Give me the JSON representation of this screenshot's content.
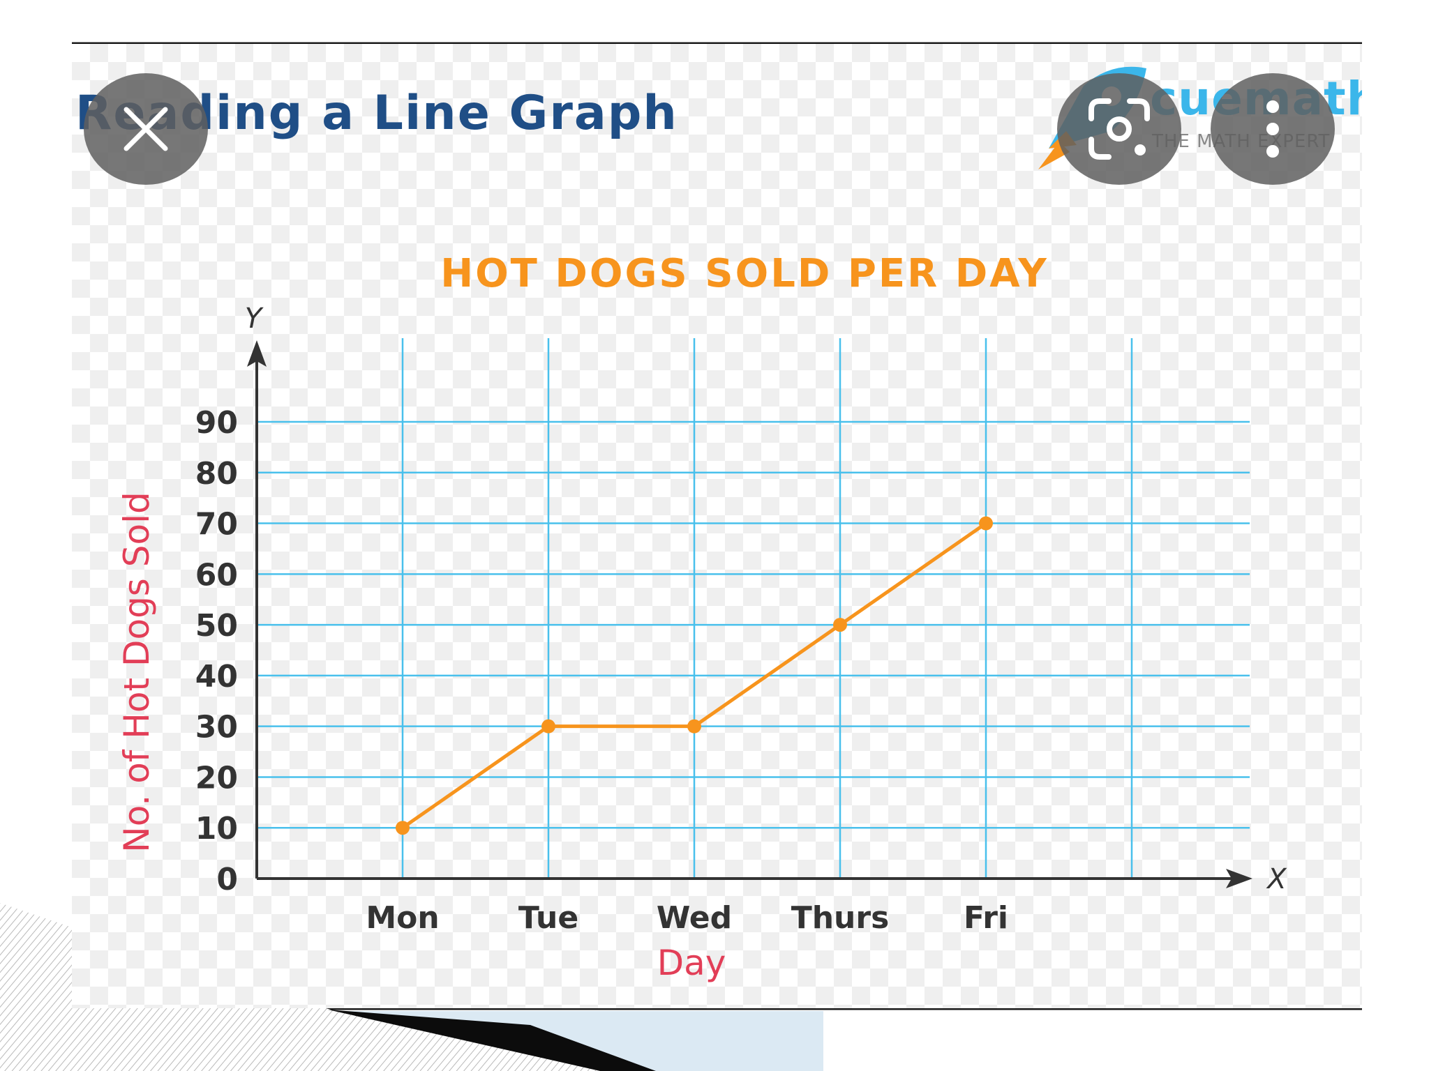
{
  "header": {
    "title": "Reading a Line Graph"
  },
  "logo": {
    "name": "cuemath",
    "tagline": "THE MATH EXPERT"
  },
  "controls": {
    "close_icon": "close-icon",
    "lens_icon": "lens-icon",
    "more_icon": "more-vert-icon"
  },
  "colors": {
    "title": "#f7941d",
    "line": "#f7941d",
    "grid": "#49c0ec",
    "axis_title": "#e23e57",
    "header": "#1f4e86"
  },
  "chart_data": {
    "type": "line",
    "title": "HOT DOGS SOLD PER DAY",
    "xlabel": "Day",
    "ylabel": "No. of Hot Dogs Sold",
    "x_axis_letter": "X",
    "y_axis_letter": "Y",
    "categories": [
      "Mon",
      "Tue",
      "Wed",
      "Thurs",
      "Fri"
    ],
    "series": [
      {
        "values": [
          10,
          30,
          30,
          50,
          70
        ]
      }
    ],
    "y_ticks": [
      0,
      10,
      20,
      30,
      40,
      50,
      60,
      70,
      80,
      90
    ],
    "ylim": [
      0,
      90
    ],
    "grid": true
  }
}
